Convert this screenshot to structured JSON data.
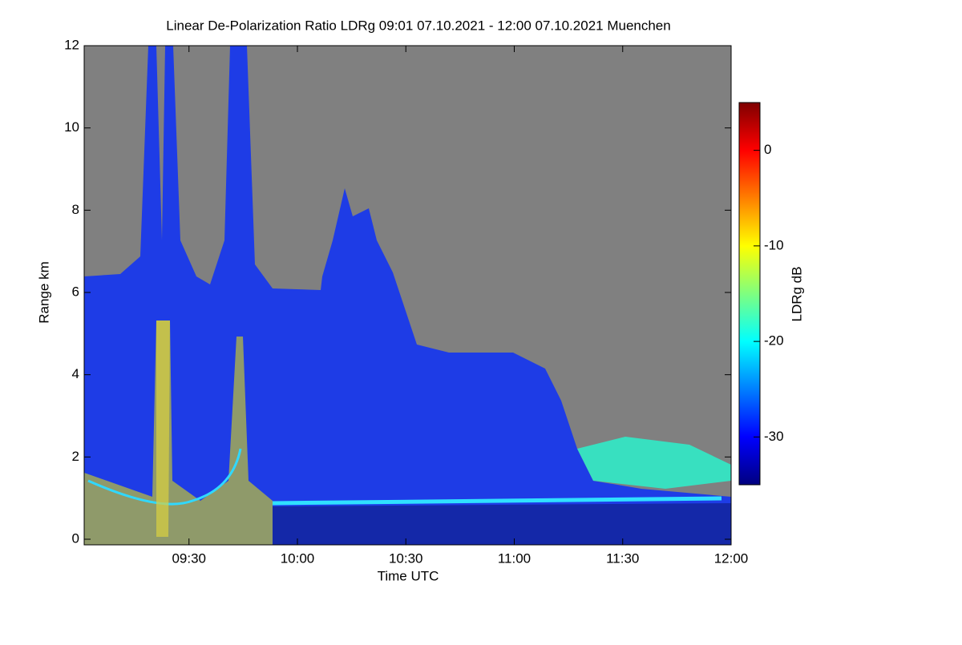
{
  "chart_data": {
    "type": "heatmap",
    "title": "Linear De-Polarization Ratio LDRg   09:01 07.10.2021 - 12:00 07.10.2021 Muenchen",
    "x_label": "Time UTC",
    "y_label": "Range km",
    "xlim": [
      9.0167,
      12.0
    ],
    "xticks": [
      {
        "value": 9.5,
        "label": "09:30"
      },
      {
        "value": 10.0,
        "label": "10:00"
      },
      {
        "value": 10.5,
        "label": "10:30"
      },
      {
        "value": 11.0,
        "label": "11:00"
      },
      {
        "value": 11.5,
        "label": "11:30"
      },
      {
        "value": 12.0,
        "label": "12:00"
      }
    ],
    "ylim": [
      0,
      12
    ],
    "yticks": [
      0,
      2,
      4,
      6,
      8,
      10,
      12
    ],
    "colorbar": {
      "label": "LDRg dB",
      "colormap": "jet",
      "clim": [
        -35,
        5
      ],
      "ticks": [
        0,
        -10,
        -20,
        -30
      ]
    },
    "background": "#808080"
  }
}
